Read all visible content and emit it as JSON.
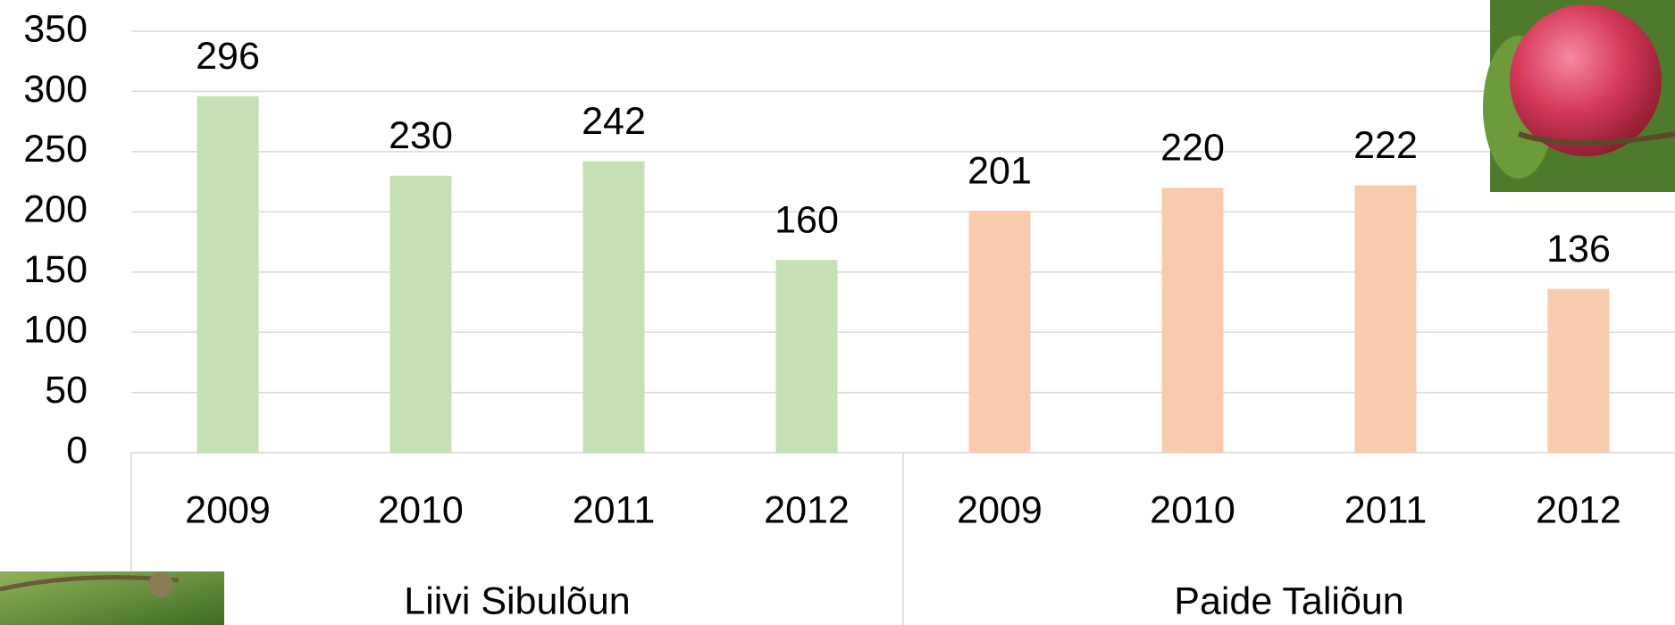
{
  "chart_data": {
    "type": "bar",
    "categories": [
      "2009",
      "2010",
      "2011",
      "2012"
    ],
    "series": [
      {
        "name": "Liivi Sibulõun",
        "color": "#c5e0b4",
        "values": [
          296,
          230,
          242,
          160
        ]
      },
      {
        "name": "Paide Taliõun",
        "color": "#f8cbad",
        "values": [
          201,
          220,
          222,
          136
        ]
      }
    ],
    "ylim": [
      0,
      350
    ],
    "yticks": [
      0,
      50,
      100,
      150,
      200,
      250,
      300,
      350
    ],
    "grid": true
  }
}
